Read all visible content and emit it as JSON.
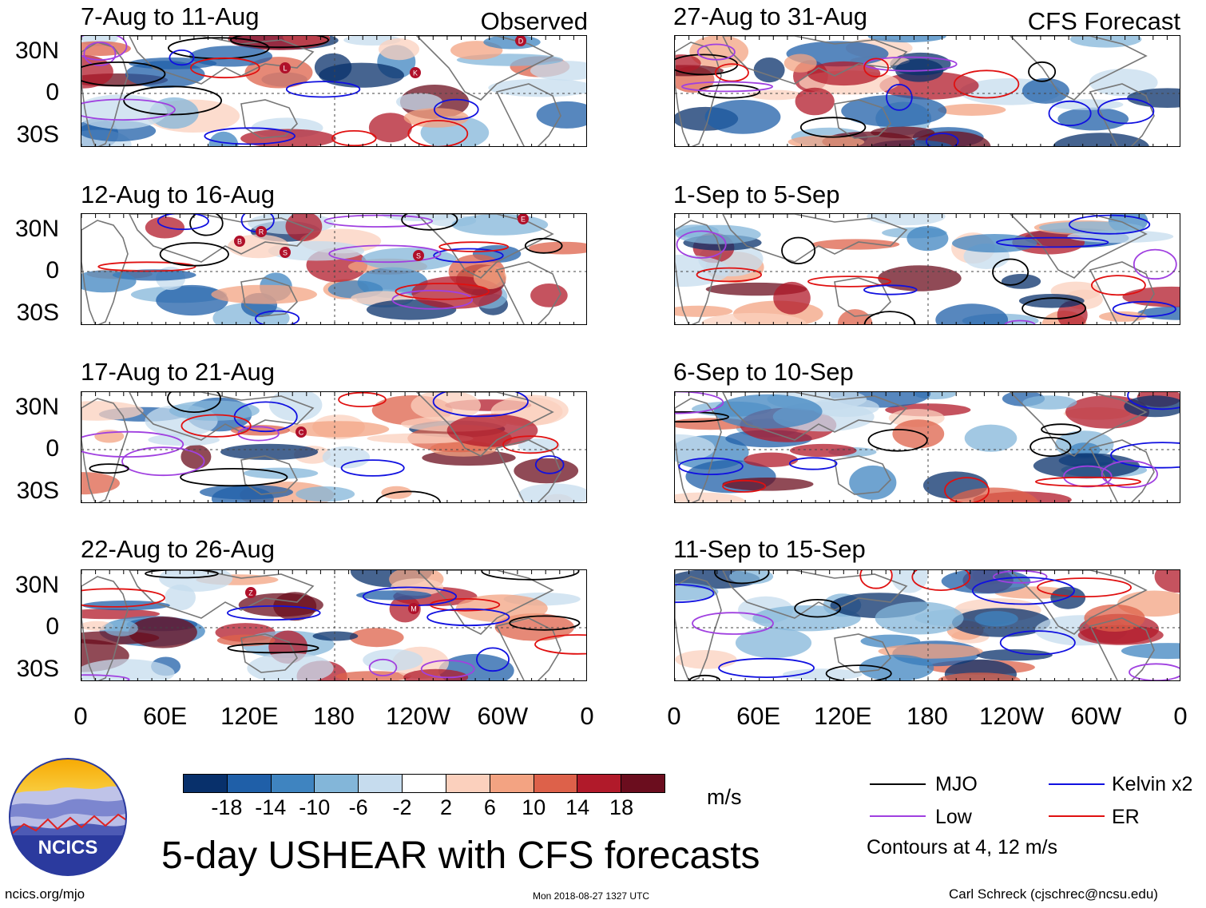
{
  "labels": {
    "observed": "Observed",
    "forecast": "CFS Forecast"
  },
  "panels_left": [
    {
      "title": "7-Aug to 11-Aug",
      "storms": [
        "D",
        "L",
        "K"
      ]
    },
    {
      "title": "12-Aug to 16-Aug",
      "storms": [
        "E",
        "R",
        "B",
        "S",
        "S"
      ]
    },
    {
      "title": "17-Aug to 21-Aug",
      "storms": [
        "C"
      ]
    },
    {
      "title": "22-Aug to 26-Aug",
      "storms": [
        "Z",
        "M"
      ]
    }
  ],
  "panels_right": [
    {
      "title": "27-Aug to 31-Aug"
    },
    {
      "title": "1-Sep to 5-Sep"
    },
    {
      "title": "6-Sep to 10-Sep"
    },
    {
      "title": "11-Sep to 15-Sep"
    }
  ],
  "lat_labels": [
    "30N",
    "0",
    "30S"
  ],
  "lon_labels": [
    "0",
    "60E",
    "120E",
    "180",
    "120W",
    "60W",
    "0"
  ],
  "colorbar": {
    "ticks": [
      "-18",
      "-14",
      "-10",
      "-6",
      "-2",
      "2",
      "6",
      "10",
      "14",
      "18"
    ],
    "colors": [
      "#08306b",
      "#1f5fa8",
      "#3f84c0",
      "#83b6d9",
      "#c6dcee",
      "#ffffff",
      "#fbd0bd",
      "#f3a382",
      "#dd614a",
      "#b11a2a",
      "#6b0d1e"
    ],
    "units": "m/s"
  },
  "legend": {
    "items": [
      {
        "label": "MJO",
        "color": "#000000"
      },
      {
        "label": "Kelvin x2",
        "color": "#1010e0"
      },
      {
        "label": "Low",
        "color": "#a040e0"
      },
      {
        "label": "ER",
        "color": "#e01010"
      }
    ],
    "note": "Contours at 4, 12 m/s"
  },
  "logo_text": "NCICS",
  "main_title": "5-day USHEAR with CFS forecasts",
  "footer": {
    "url": "ncics.org/mjo",
    "timestamp": "Mon 2018-08-27 1327 UTC",
    "credit": "Carl Schreck (cjschrec@ncsu.edu)"
  }
}
